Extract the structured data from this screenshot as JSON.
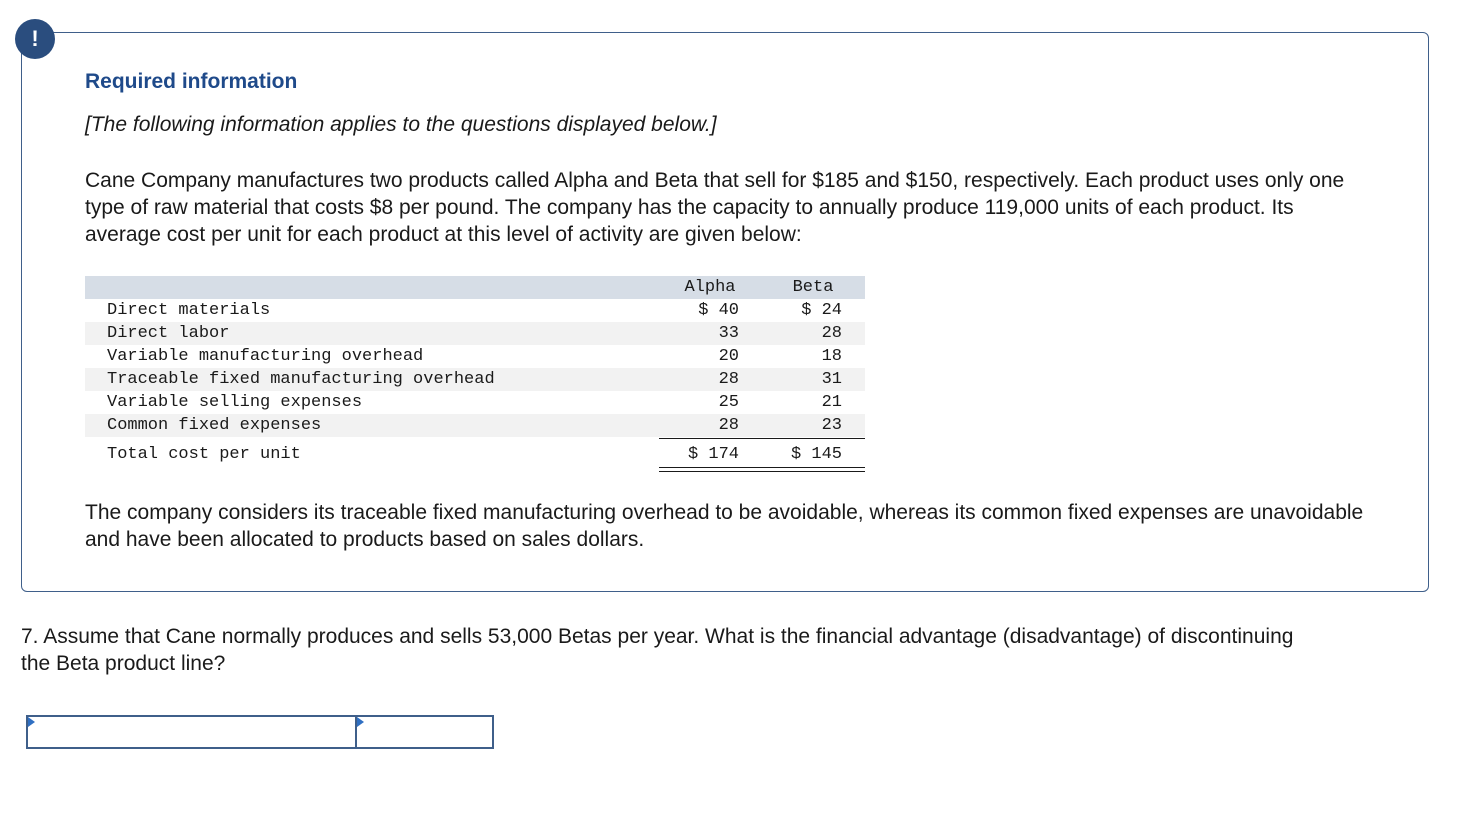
{
  "alert": {
    "symbol": "!",
    "icon": "exclamation-icon",
    "color": "#2a4d7e"
  },
  "header": {
    "title": "Required information",
    "subtitle": "[The following information applies to the questions displayed below.]"
  },
  "intro_text": "Cane Company manufactures two products called Alpha and Beta that sell for $185 and $150, respectively. Each product uses only one type of raw material that costs $8 per pound. The company has the capacity to annually produce 119,000 units of each product. Its average cost per unit for each product at this level of activity are given below:",
  "cost_table": {
    "columns": [
      "Alpha",
      "Beta"
    ],
    "rows": [
      {
        "label": "Direct materials",
        "alpha": "$ 40",
        "beta": "$ 24"
      },
      {
        "label": "Direct labor",
        "alpha": "33",
        "beta": "28"
      },
      {
        "label": "Variable manufacturing overhead",
        "alpha": "20",
        "beta": "18"
      },
      {
        "label": "Traceable fixed manufacturing overhead",
        "alpha": "28",
        "beta": "31"
      },
      {
        "label": "Variable selling expenses",
        "alpha": "25",
        "beta": "21"
      },
      {
        "label": "Common fixed expenses",
        "alpha": "28",
        "beta": "23"
      }
    ],
    "total": {
      "label": "Total cost per unit",
      "alpha": "$ 174",
      "beta": "$ 145"
    }
  },
  "closing_text": "The company considers its traceable fixed manufacturing overhead to be avoidable, whereas its common fixed expenses are unavoidable and have been allocated to products based on sales dollars.",
  "question": {
    "text": "7. Assume that Cane normally produces and sells 53,000 Betas per year. What is the financial advantage (disadvantage) of discontinuing the Beta product line?",
    "answer_label_value": "",
    "answer_amount_value": ""
  },
  "colors": {
    "accent": "#1f4a8a",
    "border": "#3f5f8a",
    "table_header_bg": "#d6dde6",
    "table_stripe_bg": "#f2f2f2"
  }
}
